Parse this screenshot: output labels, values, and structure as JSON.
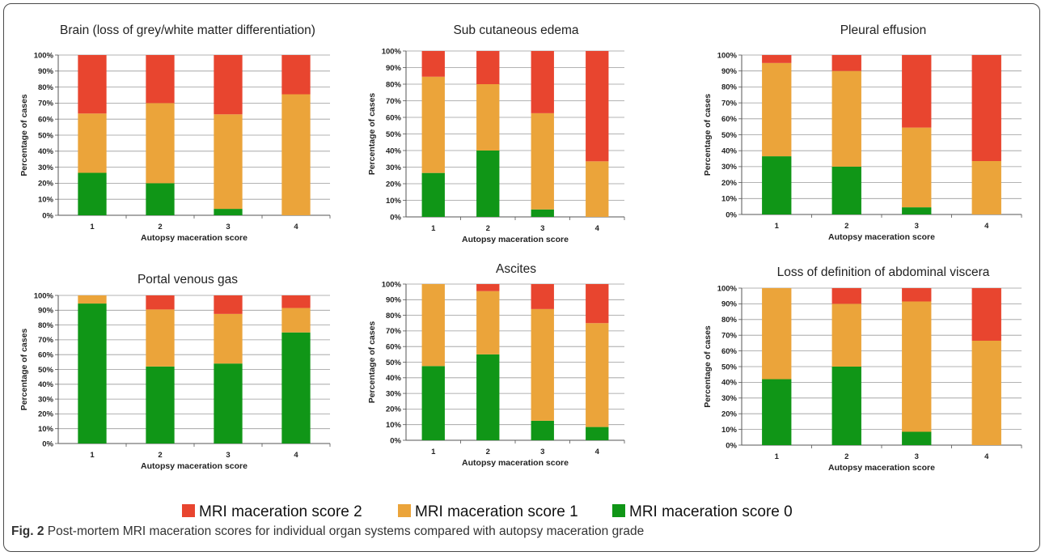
{
  "chart_data": [
    {
      "type": "bar",
      "stacked": true,
      "title": "Brain (loss of grey/white matter differentiation)",
      "xlabel": "Autopsy maceration score",
      "ylabel": "Percentage of cases",
      "ylim": [
        0,
        100
      ],
      "yticks": [
        "0%",
        "10%",
        "20%",
        "30%",
        "40%",
        "50%",
        "60%",
        "70%",
        "80%",
        "90%",
        "100%"
      ],
      "categories": [
        "1",
        "2",
        "3",
        "4"
      ],
      "series": [
        {
          "name": "MRI maceration score 0",
          "values": [
            26.5,
            20,
            4,
            0
          ]
        },
        {
          "name": "MRI maceration score 1",
          "values": [
            37,
            50,
            59,
            75.5
          ]
        },
        {
          "name": "MRI maceration score 2",
          "values": [
            36.5,
            30,
            37,
            24.5
          ]
        }
      ]
    },
    {
      "type": "bar",
      "stacked": true,
      "title": "Sub cutaneous edema",
      "xlabel": "Autopsy maceration score",
      "ylabel": "Percentage of cases",
      "ylim": [
        0,
        100
      ],
      "yticks": [
        "0%",
        "10%",
        "20%",
        "30%",
        "40%",
        "50%",
        "60%",
        "70%",
        "80%",
        "90%",
        "100%"
      ],
      "categories": [
        "1",
        "2",
        "3",
        "4"
      ],
      "series": [
        {
          "name": "MRI maceration score 0",
          "values": [
            26.5,
            40,
            4.5,
            0
          ]
        },
        {
          "name": "MRI maceration score 1",
          "values": [
            58,
            40,
            58,
            33.5
          ]
        },
        {
          "name": "MRI maceration score 2",
          "values": [
            15.5,
            20,
            37.5,
            66.5
          ]
        }
      ]
    },
    {
      "type": "bar",
      "stacked": true,
      "title": "Pleural effusion",
      "xlabel": "Autopsy maceration score",
      "ylabel": "Percentage of cases",
      "ylim": [
        0,
        100
      ],
      "yticks": [
        "0%",
        "10%",
        "20%",
        "30%",
        "40%",
        "50%",
        "60%",
        "70%",
        "80%",
        "90%",
        "100%"
      ],
      "categories": [
        "1",
        "2",
        "3",
        "4"
      ],
      "series": [
        {
          "name": "MRI maceration score 0",
          "values": [
            36.5,
            30,
            4.5,
            0
          ]
        },
        {
          "name": "MRI maceration score 1",
          "values": [
            58.5,
            60,
            50,
            33.5
          ]
        },
        {
          "name": "MRI maceration score 2",
          "values": [
            5,
            10,
            45.5,
            66.5
          ]
        }
      ]
    },
    {
      "type": "bar",
      "stacked": true,
      "title": "Portal venous gas",
      "xlabel": "Autopsy maceration score",
      "ylabel": "Percentage of cases",
      "ylim": [
        0,
        100
      ],
      "yticks": [
        "0%",
        "10%",
        "20%",
        "30%",
        "40%",
        "50%",
        "60%",
        "70%",
        "80%",
        "90%",
        "100%"
      ],
      "categories": [
        "1",
        "2",
        "3",
        "4"
      ],
      "series": [
        {
          "name": "MRI maceration score 0",
          "values": [
            94.5,
            52,
            54,
            75
          ]
        },
        {
          "name": "MRI maceration score 1",
          "values": [
            5.5,
            38.5,
            33.5,
            16.5
          ]
        },
        {
          "name": "MRI maceration score 2",
          "values": [
            0,
            9.5,
            12.5,
            8.5
          ]
        }
      ]
    },
    {
      "type": "bar",
      "stacked": true,
      "title": "Ascites",
      "xlabel": "Autopsy maceration score",
      "ylabel": "Percentage of cases",
      "ylim": [
        0,
        100
      ],
      "yticks": [
        "0%",
        "10%",
        "20%",
        "30%",
        "40%",
        "50%",
        "60%",
        "70%",
        "80%",
        "90%",
        "100%"
      ],
      "categories": [
        "1",
        "2",
        "3",
        "4"
      ],
      "series": [
        {
          "name": "MRI maceration score 0",
          "values": [
            47.5,
            55,
            12.5,
            8.5
          ]
        },
        {
          "name": "MRI maceration score 1",
          "values": [
            52.5,
            40.5,
            71.5,
            66.5
          ]
        },
        {
          "name": "MRI maceration score 2",
          "values": [
            0,
            4.5,
            16,
            25
          ]
        }
      ]
    },
    {
      "type": "bar",
      "stacked": true,
      "title": "Loss of definition of abdominal viscera",
      "xlabel": "Autopsy maceration score",
      "ylabel": "Percentage of cases",
      "ylim": [
        0,
        100
      ],
      "yticks": [
        "0%",
        "10%",
        "20%",
        "30%",
        "40%",
        "50%",
        "60%",
        "70%",
        "80%",
        "90%",
        "100%"
      ],
      "categories": [
        "1",
        "2",
        "3",
        "4"
      ],
      "series": [
        {
          "name": "MRI maceration score 0",
          "values": [
            42,
            50,
            8.5,
            0
          ]
        },
        {
          "name": "MRI maceration score 1",
          "values": [
            58,
            40,
            83,
            66.5
          ]
        },
        {
          "name": "MRI maceration score 2",
          "values": [
            0,
            10,
            8.5,
            33.5
          ]
        }
      ]
    }
  ],
  "legend": {
    "placement": "bottom",
    "items": [
      {
        "label": "MRI maceration score 2",
        "color": "#e8452f"
      },
      {
        "label": "MRI maceration score 1",
        "color": "#eba43a"
      },
      {
        "label": "MRI maceration score 0",
        "color": "#109617"
      }
    ]
  },
  "colors": {
    "score_0": "#109617",
    "score_1": "#eba43a",
    "score_2": "#e8452f",
    "gridline": "#9a9a9a",
    "axis": "#555555"
  },
  "caption": {
    "label": "Fig. 2",
    "text": "Post-mortem MRI maceration scores for individual organ systems compared with autopsy maceration grade"
  }
}
